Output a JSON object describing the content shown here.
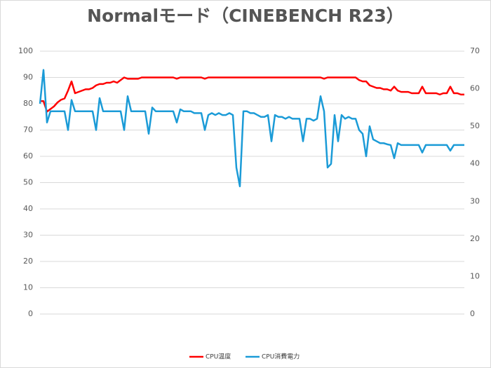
{
  "chart_data": {
    "type": "line",
    "title": "Normalモード（CINEBENCH R23）",
    "ylim": [
      0,
      100
    ],
    "yticks": [
      0,
      10,
      20,
      30,
      40,
      50,
      60,
      70,
      80,
      90,
      100
    ],
    "y2lim": [
      0,
      70
    ],
    "y2ticks": [
      0,
      10,
      20,
      30,
      40,
      50,
      60,
      70
    ],
    "grid": true,
    "legend": "bottom",
    "series": [
      {
        "name": "CPU温度",
        "color": "#ff0000",
        "values": [
          81,
          81,
          77,
          78,
          79,
          80.5,
          81.5,
          82,
          85,
          88.5,
          84,
          84.5,
          85,
          85.5,
          85.5,
          86,
          87,
          87.5,
          87.5,
          88,
          88,
          88.5,
          88,
          89,
          90,
          89.5,
          89.5,
          89.5,
          89.5,
          90,
          90,
          90,
          90,
          90,
          90,
          90,
          90,
          90,
          90,
          89.5,
          90,
          90,
          90,
          90,
          90,
          90,
          90,
          89.5,
          90,
          90,
          90,
          90,
          90,
          90,
          90,
          90,
          90,
          90,
          90,
          90,
          90,
          90,
          90,
          90,
          90,
          90,
          90,
          90,
          90,
          90,
          90,
          90,
          90,
          90,
          90,
          90,
          90,
          90,
          90,
          90,
          90,
          89.5,
          90,
          90,
          90,
          90,
          90,
          90,
          90,
          90,
          90,
          89,
          88.5,
          88.5,
          87,
          86.5,
          86,
          86,
          85.5,
          85.5,
          85,
          86.5,
          85,
          84.5,
          84.5,
          84.5,
          84,
          84,
          84,
          86.5,
          84,
          84,
          84,
          84,
          83.5,
          84,
          84,
          86.5,
          84,
          84,
          83.5,
          83.5
        ]
      },
      {
        "name": "CPU消費電力",
        "color": "#1b9bd7",
        "axis": "y2",
        "values": [
          56,
          65,
          51,
          54,
          54,
          54,
          54,
          54,
          49,
          57,
          54,
          54,
          54,
          54,
          54,
          54,
          49,
          57.5,
          54,
          54,
          54,
          54,
          54,
          54,
          49,
          58,
          54,
          54,
          54,
          54,
          54,
          48,
          55,
          54,
          54,
          54,
          54,
          54,
          54,
          51,
          54.5,
          54,
          54,
          54,
          53.5,
          53.5,
          53.5,
          49,
          53,
          53.5,
          53,
          53.5,
          53,
          53,
          53.5,
          53,
          39,
          34,
          54,
          54,
          53.5,
          53.5,
          53,
          52.5,
          52.5,
          53,
          46,
          53,
          52.5,
          52.5,
          52,
          52.5,
          52,
          52,
          52,
          46,
          52,
          52,
          51.5,
          52,
          58,
          54,
          39,
          40,
          53,
          46,
          53,
          52,
          52.5,
          52,
          52,
          49,
          48,
          42,
          50,
          46.5,
          46,
          45.5,
          45.5,
          45.2,
          45,
          41.5,
          45.5,
          45,
          45,
          45,
          45,
          45,
          45,
          43,
          45,
          45,
          45,
          45,
          45,
          45,
          45,
          43.5,
          45,
          45,
          45,
          45
        ]
      }
    ]
  }
}
